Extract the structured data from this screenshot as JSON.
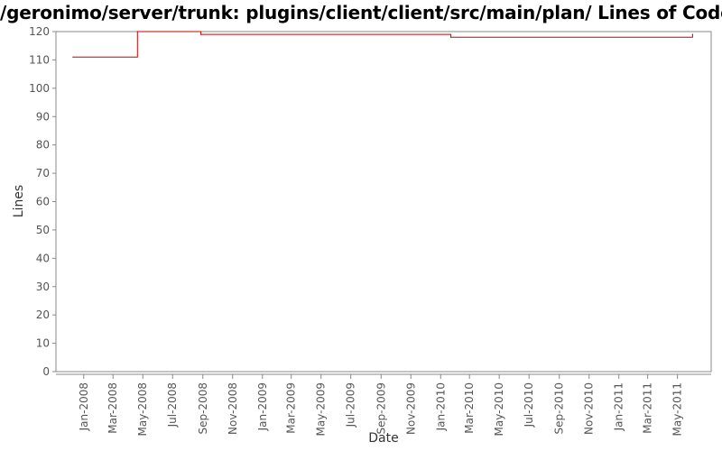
{
  "title": "/geronimo/server/trunk: plugins/client/client/src/main/plan/ Lines of Code",
  "chart_data": {
    "type": "line",
    "title": "/geronimo/server/trunk: plugins/client/client/src/main/plan/ Lines of Code",
    "xlabel": "Date",
    "ylabel": "Lines",
    "ylim": [
      0,
      120
    ],
    "xlim": [
      "2007-12-01",
      "2011-06-15"
    ],
    "y_ticks": [
      0,
      10,
      20,
      30,
      40,
      50,
      60,
      70,
      80,
      90,
      100,
      110,
      120
    ],
    "x_ticks": [
      {
        "date": "2008-01-01",
        "label": "Jan-2008"
      },
      {
        "date": "2008-03-01",
        "label": "Mar-2008"
      },
      {
        "date": "2008-05-01",
        "label": "May-2008"
      },
      {
        "date": "2008-07-01",
        "label": "Jul-2008"
      },
      {
        "date": "2008-09-01",
        "label": "Sep-2008"
      },
      {
        "date": "2008-11-01",
        "label": "Nov-2008"
      },
      {
        "date": "2009-01-01",
        "label": "Jan-2009"
      },
      {
        "date": "2009-03-01",
        "label": "Mar-2009"
      },
      {
        "date": "2009-05-01",
        "label": "May-2009"
      },
      {
        "date": "2009-07-01",
        "label": "Jul-2009"
      },
      {
        "date": "2009-09-01",
        "label": "Sep-2009"
      },
      {
        "date": "2009-11-01",
        "label": "Nov-2009"
      },
      {
        "date": "2010-01-01",
        "label": "Jan-2010"
      },
      {
        "date": "2010-03-01",
        "label": "Mar-2010"
      },
      {
        "date": "2010-05-01",
        "label": "May-2010"
      },
      {
        "date": "2010-07-01",
        "label": "Jul-2010"
      },
      {
        "date": "2010-09-01",
        "label": "Sep-2010"
      },
      {
        "date": "2010-11-01",
        "label": "Nov-2010"
      },
      {
        "date": "2011-01-01",
        "label": "Jan-2011"
      },
      {
        "date": "2011-03-01",
        "label": "Mar-2011"
      },
      {
        "date": "2011-05-01",
        "label": "May-2011"
      }
    ],
    "grid": false,
    "line_color": "#cc0000",
    "series": [
      {
        "points": [
          {
            "x": "2007-12-10",
            "y": 111
          },
          {
            "x": "2008-04-20",
            "y": 120
          },
          {
            "x": "2008-08-28",
            "y": 119
          },
          {
            "x": "2010-01-22",
            "y": 118
          },
          {
            "x": "2011-06-01",
            "y": 119
          }
        ]
      }
    ]
  }
}
